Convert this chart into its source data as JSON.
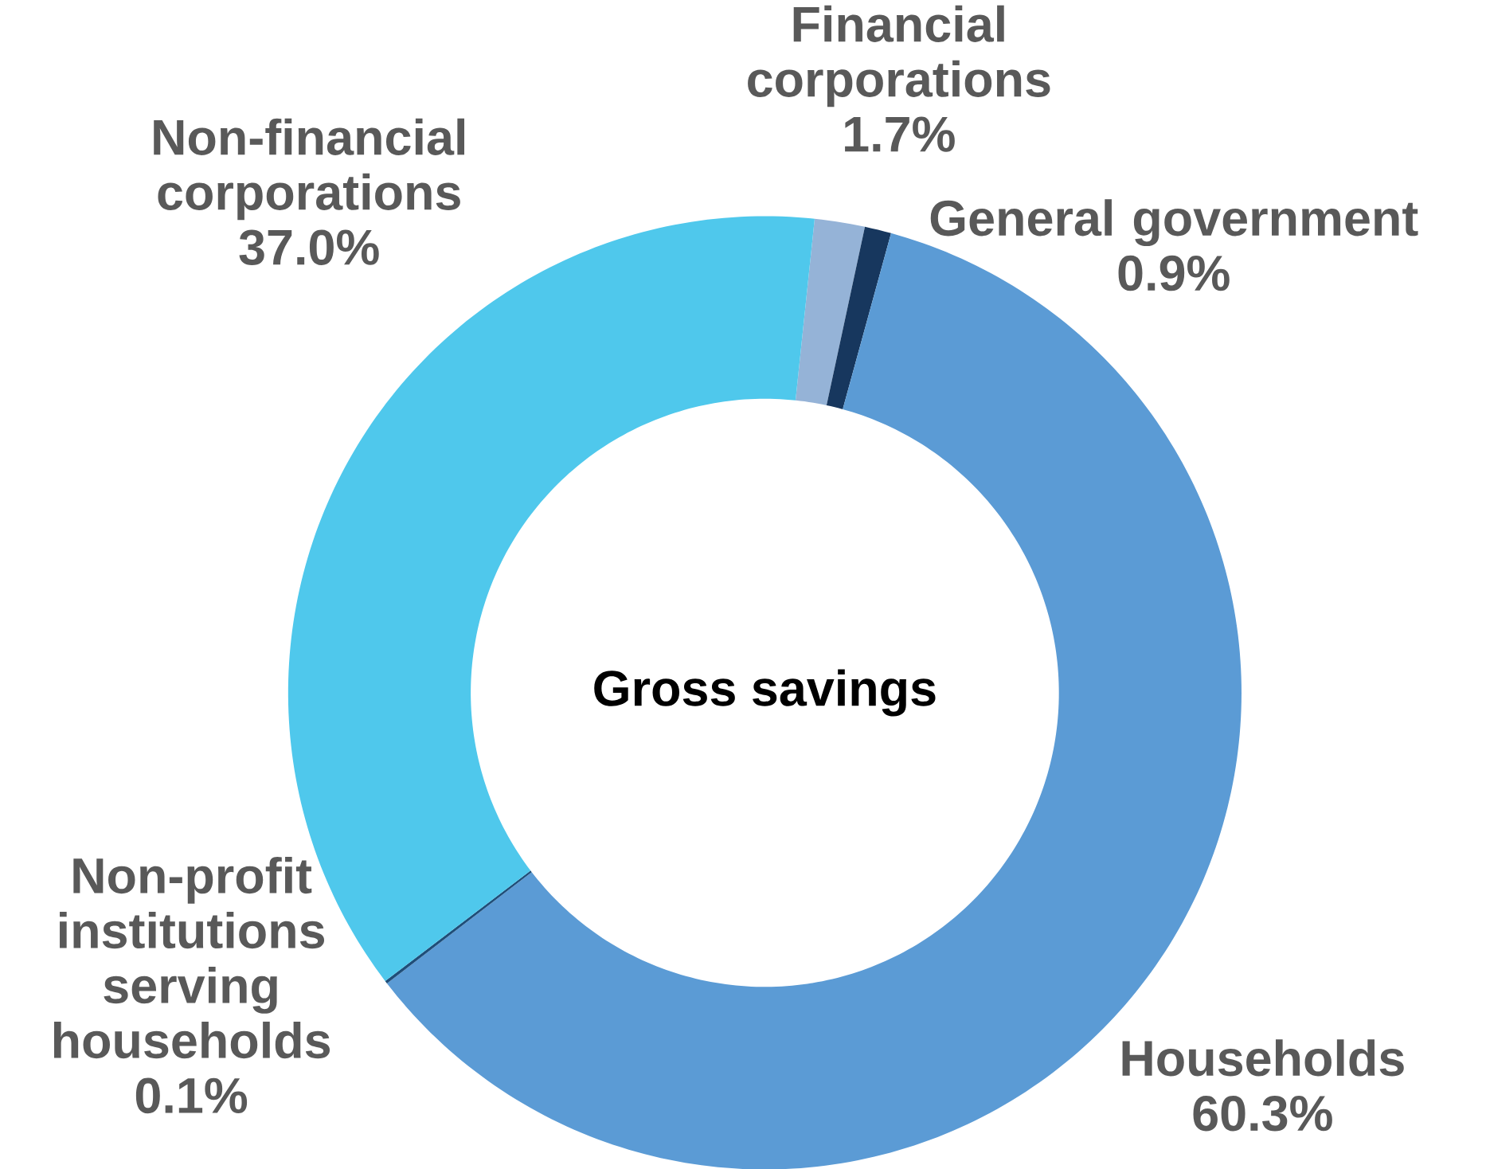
{
  "chart_data": {
    "type": "donut",
    "title": "Gross savings",
    "categories": [
      "Financial corporations",
      "General government",
      "Households",
      "Non-profit institutions serving households",
      "Non-financial corporations"
    ],
    "values": [
      1.7,
      0.9,
      60.3,
      0.1,
      37.0
    ],
    "value_labels": [
      "1.7%",
      "0.9%",
      "60.3%",
      "0.1%",
      "37.0%"
    ],
    "colors": [
      "#95b3d7",
      "#17375e",
      "#5b9bd5",
      "#1f4e79",
      "#4fc8ec"
    ]
  }
}
